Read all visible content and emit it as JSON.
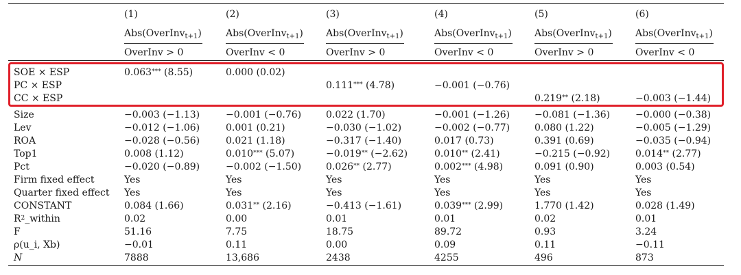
{
  "columns": [
    {
      "num": "(1)",
      "dep": "Abs(OverInv",
      "dep_sub": "t+1",
      "dep_close": ")",
      "cond": "OverInv > 0"
    },
    {
      "num": "(2)",
      "dep": "Abs(OverInv",
      "dep_sub": "t+1",
      "dep_close": ")",
      "cond": "OverInv < 0"
    },
    {
      "num": "(3)",
      "dep": "Abs(OverInv",
      "dep_sub": "t+1",
      "dep_close": ")",
      "cond": "OverInv > 0"
    },
    {
      "num": "(4)",
      "dep": "Abs(OverInv",
      "dep_sub": "t+1",
      "dep_close": ")",
      "cond": "OverInv < 0"
    },
    {
      "num": "(5)",
      "dep": "Abs(OverInv",
      "dep_sub": "t+1",
      "dep_close": ")",
      "cond": "OverInv > 0"
    },
    {
      "num": "(6)",
      "dep": "Abs(OverInv",
      "dep_sub": "t+1",
      "dep_close": ")",
      "cond": "OverInv < 0"
    }
  ],
  "rows": [
    {
      "label": "SOE × ESP",
      "cells": [
        {
          "v": "0.063",
          "s": "***",
          "t": "(8.55)"
        },
        {
          "v": "0.000",
          "s": "",
          "t": "(0.02)"
        },
        null,
        null,
        null,
        null
      ]
    },
    {
      "label": "PC × ESP",
      "cells": [
        null,
        null,
        {
          "v": "0.111",
          "s": "***",
          "t": "(4.78)"
        },
        {
          "v": "−0.001",
          "s": "",
          "t": "(−0.76)"
        },
        null,
        null
      ]
    },
    {
      "label": "CC × ESP",
      "cells": [
        null,
        null,
        null,
        null,
        {
          "v": "0.219",
          "s": "**",
          "t": "(2.18)"
        },
        {
          "v": "−0.003",
          "s": "",
          "t": "(−1.44)"
        }
      ]
    },
    {
      "label": "Size",
      "cells": [
        {
          "v": "−0.003",
          "s": "",
          "t": "(−1.13)"
        },
        {
          "v": "−0.001",
          "s": "",
          "t": "(−0.76)"
        },
        {
          "v": "0.022",
          "s": "",
          "t": "(1.70)"
        },
        {
          "v": "−0.001",
          "s": "",
          "t": "(−1.26)"
        },
        {
          "v": "−0.081",
          "s": "",
          "t": "(−1.36)"
        },
        {
          "v": "−0.000",
          "s": "",
          "t": "(−0.38)"
        }
      ]
    },
    {
      "label": "Lev",
      "cells": [
        {
          "v": "−0.012",
          "s": "",
          "t": "(−1.06)"
        },
        {
          "v": "0.001",
          "s": "",
          "t": "(0.21)"
        },
        {
          "v": "−0.030",
          "s": "",
          "t": "(−1.02)"
        },
        {
          "v": "−0.002",
          "s": "",
          "t": "(−0.77)"
        },
        {
          "v": "0.080",
          "s": "",
          "t": "(1.22)"
        },
        {
          "v": "−0.005",
          "s": "",
          "t": "(−1.29)"
        }
      ]
    },
    {
      "label": "ROA",
      "cells": [
        {
          "v": "−0.028",
          "s": "",
          "t": "(−0.56)"
        },
        {
          "v": "0.021",
          "s": "",
          "t": "(1.18)"
        },
        {
          "v": "−0.317",
          "s": "",
          "t": "(−1.40)"
        },
        {
          "v": "0.017",
          "s": "",
          "t": "(0.73)"
        },
        {
          "v": "0.391",
          "s": "",
          "t": "(0.69)"
        },
        {
          "v": "−0.035",
          "s": "",
          "t": "(−0.94)"
        }
      ]
    },
    {
      "label": "Top1",
      "cells": [
        {
          "v": "0.008",
          "s": "",
          "t": "(1.12)"
        },
        {
          "v": "0.010",
          "s": "***",
          "t": "(5.07)"
        },
        {
          "v": "−0.019",
          "s": "**",
          "t": "(−2.62)"
        },
        {
          "v": "0.010",
          "s": "**",
          "t": "(2.41)"
        },
        {
          "v": "−0.215",
          "s": "",
          "t": "(−0.92)"
        },
        {
          "v": "0.014",
          "s": "**",
          "t": "(2.77)"
        }
      ]
    },
    {
      "label": "Pct",
      "cells": [
        {
          "v": "−0.020",
          "s": "",
          "t": "(−0.89)"
        },
        {
          "v": "−0.002",
          "s": "",
          "t": "(−1.50)"
        },
        {
          "v": "0.026",
          "s": "**",
          "t": "(2.77)"
        },
        {
          "v": "0.002",
          "s": "***",
          "t": "(4.98)"
        },
        {
          "v": "0.091",
          "s": "",
          "t": "(0.90)"
        },
        {
          "v": "0.003",
          "s": "",
          "t": "(0.54)"
        }
      ]
    },
    {
      "label": "Firm fixed effect",
      "cells": [
        {
          "v": "Yes",
          "s": "",
          "t": ""
        },
        {
          "v": "Yes",
          "s": "",
          "t": ""
        },
        {
          "v": "Yes",
          "s": "",
          "t": ""
        },
        {
          "v": "Yes",
          "s": "",
          "t": ""
        },
        {
          "v": "Yes",
          "s": "",
          "t": ""
        },
        {
          "v": "Yes",
          "s": "",
          "t": ""
        }
      ]
    },
    {
      "label": "Quarter fixed effect",
      "cells": [
        {
          "v": "Yes",
          "s": "",
          "t": ""
        },
        {
          "v": "Yes",
          "s": "",
          "t": ""
        },
        {
          "v": "Yes",
          "s": "",
          "t": ""
        },
        {
          "v": "Yes",
          "s": "",
          "t": ""
        },
        {
          "v": "Yes",
          "s": "",
          "t": ""
        },
        {
          "v": "Yes",
          "s": "",
          "t": ""
        }
      ]
    },
    {
      "label": "CONSTANT",
      "cells": [
        {
          "v": "0.084",
          "s": "",
          "t": "(1.66)"
        },
        {
          "v": "0.031",
          "s": "**",
          "t": "(2.16)"
        },
        {
          "v": "−0.413",
          "s": "",
          "t": "(−1.61)"
        },
        {
          "v": "0.039",
          "s": "***",
          "t": "(2.99)"
        },
        {
          "v": "1.770",
          "s": "",
          "t": "(1.42)"
        },
        {
          "v": "0.028",
          "s": "",
          "t": "(1.49)"
        }
      ]
    },
    {
      "label": "R",
      "label_sup": "2",
      "label_rest": "_within",
      "cells": [
        {
          "v": "0.02",
          "s": "",
          "t": ""
        },
        {
          "v": "0.00",
          "s": "",
          "t": ""
        },
        {
          "v": "0.01",
          "s": "",
          "t": ""
        },
        {
          "v": "0.01",
          "s": "",
          "t": ""
        },
        {
          "v": "0.02",
          "s": "",
          "t": ""
        },
        {
          "v": "0.01",
          "s": "",
          "t": ""
        }
      ]
    },
    {
      "label": "F",
      "cells": [
        {
          "v": "51.16",
          "s": "",
          "t": ""
        },
        {
          "v": "7.75",
          "s": "",
          "t": ""
        },
        {
          "v": "18.75",
          "s": "",
          "t": ""
        },
        {
          "v": "89.72",
          "s": "",
          "t": ""
        },
        {
          "v": "0.93",
          "s": "",
          "t": ""
        },
        {
          "v": "3.24",
          "s": "",
          "t": ""
        }
      ]
    },
    {
      "label": "ρ(u_i, Xb)",
      "cells": [
        {
          "v": "−0.01",
          "s": "",
          "t": ""
        },
        {
          "v": "0.11",
          "s": "",
          "t": ""
        },
        {
          "v": "0.00",
          "s": "",
          "t": ""
        },
        {
          "v": "0.09",
          "s": "",
          "t": ""
        },
        {
          "v": "0.11",
          "s": "",
          "t": ""
        },
        {
          "v": "−0.11",
          "s": "",
          "t": ""
        }
      ]
    },
    {
      "label": "N",
      "italic": true,
      "cells": [
        {
          "v": "7888",
          "s": "",
          "t": ""
        },
        {
          "v": "13,686",
          "s": "",
          "t": ""
        },
        {
          "v": "2438",
          "s": "",
          "t": ""
        },
        {
          "v": "4255",
          "s": "",
          "t": ""
        },
        {
          "v": "496",
          "s": "",
          "t": ""
        },
        {
          "v": "873",
          "s": "",
          "t": ""
        }
      ]
    }
  ],
  "highlight_color": "#e0202a"
}
